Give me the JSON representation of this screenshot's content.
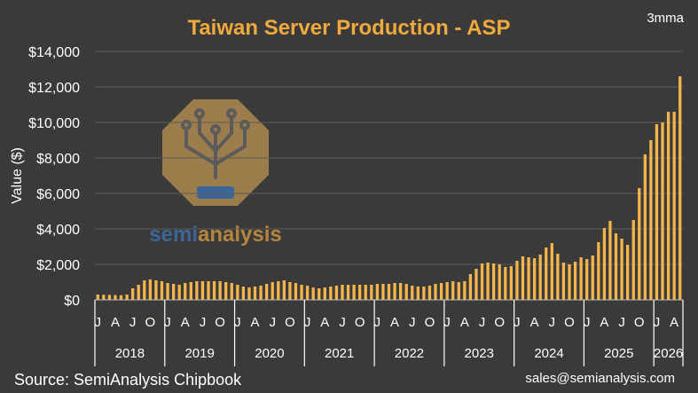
{
  "chart_data": {
    "type": "bar",
    "title": "Taiwan Server Production - ASP",
    "annotation": "3mma",
    "ylabel": "Value ($)",
    "xlabel": "",
    "ylim": [
      0,
      14000
    ],
    "yticks": [
      "$0",
      "$2,000",
      "$4,000",
      "$6,000",
      "$8,000",
      "$10,000",
      "$12,000",
      "$14,000"
    ],
    "grid": true,
    "bar_color": "#f5b54a",
    "month_tick_labels": [
      "J",
      "A",
      "J",
      "O"
    ],
    "years": [
      {
        "label": "2018",
        "values": [
          300,
          290,
          280,
          270,
          260,
          300,
          650,
          850,
          1100,
          1150,
          1100,
          1050
        ]
      },
      {
        "label": "2019",
        "values": [
          950,
          900,
          850,
          950,
          1000,
          1050,
          1050,
          1050,
          1050,
          1050,
          1000,
          950
        ]
      },
      {
        "label": "2020",
        "values": [
          850,
          750,
          700,
          750,
          800,
          900,
          1000,
          1050,
          1100,
          1000,
          950,
          850
        ]
      },
      {
        "label": "2021",
        "values": [
          800,
          700,
          650,
          700,
          750,
          800,
          850,
          850,
          850,
          850,
          850,
          850
        ]
      },
      {
        "label": "2022",
        "values": [
          900,
          900,
          900,
          950,
          950,
          900,
          800,
          750,
          750,
          800,
          900,
          950
        ]
      },
      {
        "label": "2023",
        "values": [
          1000,
          1050,
          1000,
          1050,
          1450,
          1750,
          2050,
          2100,
          2050,
          2000,
          1850,
          1900
        ]
      },
      {
        "label": "2024",
        "values": [
          2200,
          2450,
          2400,
          2350,
          2550,
          2950,
          3200,
          2600,
          2100,
          2000,
          2150,
          2400
        ]
      },
      {
        "label": "2025",
        "values": [
          2300,
          2500,
          3250,
          4050,
          4450,
          3750,
          3450,
          3100,
          4500,
          6300,
          8200,
          9000
        ]
      },
      {
        "label": "2026",
        "values": [
          9900,
          10000,
          10600,
          10600,
          12600
        ]
      }
    ]
  },
  "footer": {
    "source": "Source: SemiAnalysis Chipbook",
    "email": "sales@semianalysis.com"
  },
  "watermark": {
    "text_part1": "semi",
    "text_part2": "analysis",
    "color_part1": "#3e79c2",
    "color_part2": "#e8a640"
  }
}
